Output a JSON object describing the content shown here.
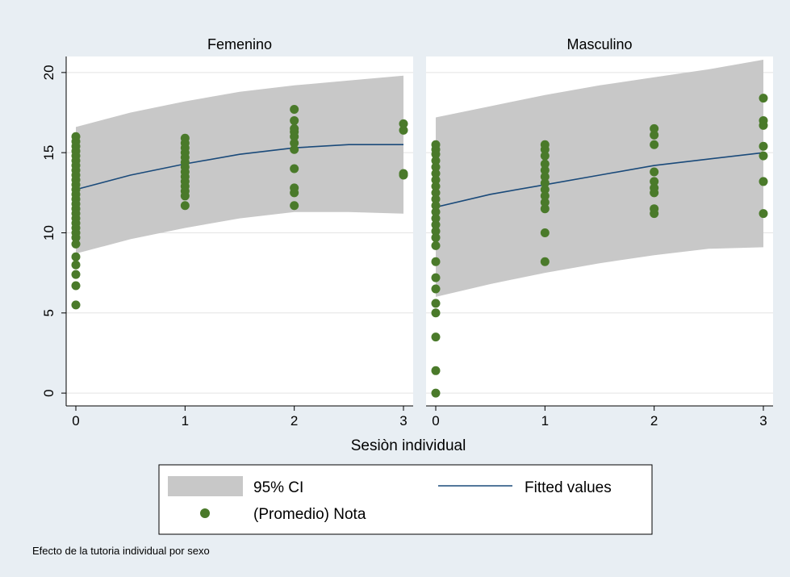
{
  "chart_data": {
    "type": "scatter",
    "xlabel": "Sesiòn individual",
    "ylabel": "",
    "note": "Efecto de la tutoria individual por sexo",
    "xlim": [
      -0.1,
      3.1
    ],
    "ylim": [
      -0.8,
      21.0
    ],
    "xticks": [
      0,
      1,
      2,
      3
    ],
    "yticks": [
      0,
      5,
      10,
      15,
      20
    ],
    "grid": true,
    "legend_position": "bottom",
    "legend": {
      "ci_label": "95% CI",
      "fit_label": "Fitted values",
      "points_label": "(Promedio) Nota"
    },
    "colors": {
      "background": "#e8eef3",
      "plot_bg": "#ffffff",
      "strip_bg": "#e8eef3",
      "ci_fill": "#c8c8c8",
      "fit_line": "#1a4a7a",
      "points": "#4a7a2a",
      "grid": "#e4e4e4"
    },
    "panels": [
      {
        "title": "Femenino",
        "fit": [
          {
            "x": 0,
            "y": 12.7
          },
          {
            "x": 0.5,
            "y": 13.6
          },
          {
            "x": 1,
            "y": 14.3
          },
          {
            "x": 1.5,
            "y": 14.9
          },
          {
            "x": 2,
            "y": 15.3
          },
          {
            "x": 2.5,
            "y": 15.5
          },
          {
            "x": 3,
            "y": 15.5
          }
        ],
        "ci_upper": [
          {
            "x": 0,
            "y": 16.6
          },
          {
            "x": 0.5,
            "y": 17.5
          },
          {
            "x": 1,
            "y": 18.2
          },
          {
            "x": 1.5,
            "y": 18.8
          },
          {
            "x": 2,
            "y": 19.2
          },
          {
            "x": 2.5,
            "y": 19.5
          },
          {
            "x": 3,
            "y": 19.8
          }
        ],
        "ci_lower": [
          {
            "x": 0,
            "y": 8.7
          },
          {
            "x": 0.5,
            "y": 9.6
          },
          {
            "x": 1,
            "y": 10.3
          },
          {
            "x": 1.5,
            "y": 10.9
          },
          {
            "x": 2,
            "y": 11.3
          },
          {
            "x": 2.5,
            "y": 11.3
          },
          {
            "x": 3,
            "y": 11.2
          }
        ],
        "points": [
          {
            "x": 0,
            "y": 5.5
          },
          {
            "x": 0,
            "y": 6.7
          },
          {
            "x": 0,
            "y": 7.4
          },
          {
            "x": 0,
            "y": 8.0
          },
          {
            "x": 0,
            "y": 8.5
          },
          {
            "x": 0,
            "y": 9.3
          },
          {
            "x": 0,
            "y": 9.7
          },
          {
            "x": 0,
            "y": 10.0
          },
          {
            "x": 0,
            "y": 10.3
          },
          {
            "x": 0,
            "y": 10.6
          },
          {
            "x": 0,
            "y": 10.9
          },
          {
            "x": 0,
            "y": 11.2
          },
          {
            "x": 0,
            "y": 11.5
          },
          {
            "x": 0,
            "y": 11.8
          },
          {
            "x": 0,
            "y": 12.1
          },
          {
            "x": 0,
            "y": 12.4
          },
          {
            "x": 0,
            "y": 12.7
          },
          {
            "x": 0,
            "y": 13.0
          },
          {
            "x": 0,
            "y": 13.3
          },
          {
            "x": 0,
            "y": 13.6
          },
          {
            "x": 0,
            "y": 13.9
          },
          {
            "x": 0,
            "y": 14.2
          },
          {
            "x": 0,
            "y": 14.5
          },
          {
            "x": 0,
            "y": 14.8
          },
          {
            "x": 0,
            "y": 15.1
          },
          {
            "x": 0,
            "y": 15.4
          },
          {
            "x": 0,
            "y": 15.7
          },
          {
            "x": 0,
            "y": 16.0
          },
          {
            "x": 1,
            "y": 11.7
          },
          {
            "x": 1,
            "y": 12.3
          },
          {
            "x": 1,
            "y": 12.6
          },
          {
            "x": 1,
            "y": 12.9
          },
          {
            "x": 1,
            "y": 13.2
          },
          {
            "x": 1,
            "y": 13.5
          },
          {
            "x": 1,
            "y": 13.8
          },
          {
            "x": 1,
            "y": 14.1
          },
          {
            "x": 1,
            "y": 14.4
          },
          {
            "x": 1,
            "y": 14.7
          },
          {
            "x": 1,
            "y": 15.0
          },
          {
            "x": 1,
            "y": 15.3
          },
          {
            "x": 1,
            "y": 15.6
          },
          {
            "x": 1,
            "y": 15.9
          },
          {
            "x": 2,
            "y": 11.7
          },
          {
            "x": 2,
            "y": 12.5
          },
          {
            "x": 2,
            "y": 12.8
          },
          {
            "x": 2,
            "y": 14.0
          },
          {
            "x": 2,
            "y": 15.2
          },
          {
            "x": 2,
            "y": 15.6
          },
          {
            "x": 2,
            "y": 16.0
          },
          {
            "x": 2,
            "y": 16.3
          },
          {
            "x": 2,
            "y": 16.5
          },
          {
            "x": 2,
            "y": 17.0
          },
          {
            "x": 2,
            "y": 17.7
          },
          {
            "x": 3,
            "y": 13.6
          },
          {
            "x": 3,
            "y": 13.7
          },
          {
            "x": 3,
            "y": 16.4
          },
          {
            "x": 3,
            "y": 16.8
          }
        ]
      },
      {
        "title": "Masculino",
        "fit": [
          {
            "x": 0,
            "y": 11.6
          },
          {
            "x": 0.5,
            "y": 12.4
          },
          {
            "x": 1,
            "y": 13.0
          },
          {
            "x": 1.5,
            "y": 13.6
          },
          {
            "x": 2,
            "y": 14.2
          },
          {
            "x": 2.5,
            "y": 14.6
          },
          {
            "x": 3,
            "y": 15.0
          }
        ],
        "ci_upper": [
          {
            "x": 0,
            "y": 17.2
          },
          {
            "x": 0.5,
            "y": 17.9
          },
          {
            "x": 1,
            "y": 18.6
          },
          {
            "x": 1.5,
            "y": 19.2
          },
          {
            "x": 2,
            "y": 19.7
          },
          {
            "x": 2.5,
            "y": 20.2
          },
          {
            "x": 3,
            "y": 20.8
          }
        ],
        "ci_lower": [
          {
            "x": 0,
            "y": 6.0
          },
          {
            "x": 0.5,
            "y": 6.8
          },
          {
            "x": 1,
            "y": 7.5
          },
          {
            "x": 1.5,
            "y": 8.1
          },
          {
            "x": 2,
            "y": 8.6
          },
          {
            "x": 2.5,
            "y": 9.0
          },
          {
            "x": 3,
            "y": 9.1
          }
        ],
        "points": [
          {
            "x": 0,
            "y": 0.0
          },
          {
            "x": 0,
            "y": 1.4
          },
          {
            "x": 0,
            "y": 3.5
          },
          {
            "x": 0,
            "y": 5.0
          },
          {
            "x": 0,
            "y": 5.6
          },
          {
            "x": 0,
            "y": 6.5
          },
          {
            "x": 0,
            "y": 7.2
          },
          {
            "x": 0,
            "y": 8.2
          },
          {
            "x": 0,
            "y": 9.2
          },
          {
            "x": 0,
            "y": 9.7
          },
          {
            "x": 0,
            "y": 10.1
          },
          {
            "x": 0,
            "y": 10.5
          },
          {
            "x": 0,
            "y": 10.9
          },
          {
            "x": 0,
            "y": 11.3
          },
          {
            "x": 0,
            "y": 11.7
          },
          {
            "x": 0,
            "y": 12.1
          },
          {
            "x": 0,
            "y": 12.5
          },
          {
            "x": 0,
            "y": 12.9
          },
          {
            "x": 0,
            "y": 13.3
          },
          {
            "x": 0,
            "y": 13.7
          },
          {
            "x": 0,
            "y": 14.1
          },
          {
            "x": 0,
            "y": 14.5
          },
          {
            "x": 0,
            "y": 14.9
          },
          {
            "x": 0,
            "y": 15.2
          },
          {
            "x": 0,
            "y": 15.5
          },
          {
            "x": 1,
            "y": 8.2
          },
          {
            "x": 1,
            "y": 10.0
          },
          {
            "x": 1,
            "y": 11.5
          },
          {
            "x": 1,
            "y": 11.9
          },
          {
            "x": 1,
            "y": 12.3
          },
          {
            "x": 1,
            "y": 12.7
          },
          {
            "x": 1,
            "y": 13.1
          },
          {
            "x": 1,
            "y": 13.5
          },
          {
            "x": 1,
            "y": 13.9
          },
          {
            "x": 1,
            "y": 14.3
          },
          {
            "x": 1,
            "y": 14.8
          },
          {
            "x": 1,
            "y": 15.2
          },
          {
            "x": 1,
            "y": 15.5
          },
          {
            "x": 2,
            "y": 11.2
          },
          {
            "x": 2,
            "y": 11.5
          },
          {
            "x": 2,
            "y": 12.5
          },
          {
            "x": 2,
            "y": 12.8
          },
          {
            "x": 2,
            "y": 13.2
          },
          {
            "x": 2,
            "y": 13.8
          },
          {
            "x": 2,
            "y": 15.5
          },
          {
            "x": 2,
            "y": 16.1
          },
          {
            "x": 2,
            "y": 16.5
          },
          {
            "x": 3,
            "y": 11.2
          },
          {
            "x": 3,
            "y": 13.2
          },
          {
            "x": 3,
            "y": 14.8
          },
          {
            "x": 3,
            "y": 15.4
          },
          {
            "x": 3,
            "y": 16.7
          },
          {
            "x": 3,
            "y": 17.0
          },
          {
            "x": 3,
            "y": 18.4
          }
        ]
      }
    ]
  }
}
